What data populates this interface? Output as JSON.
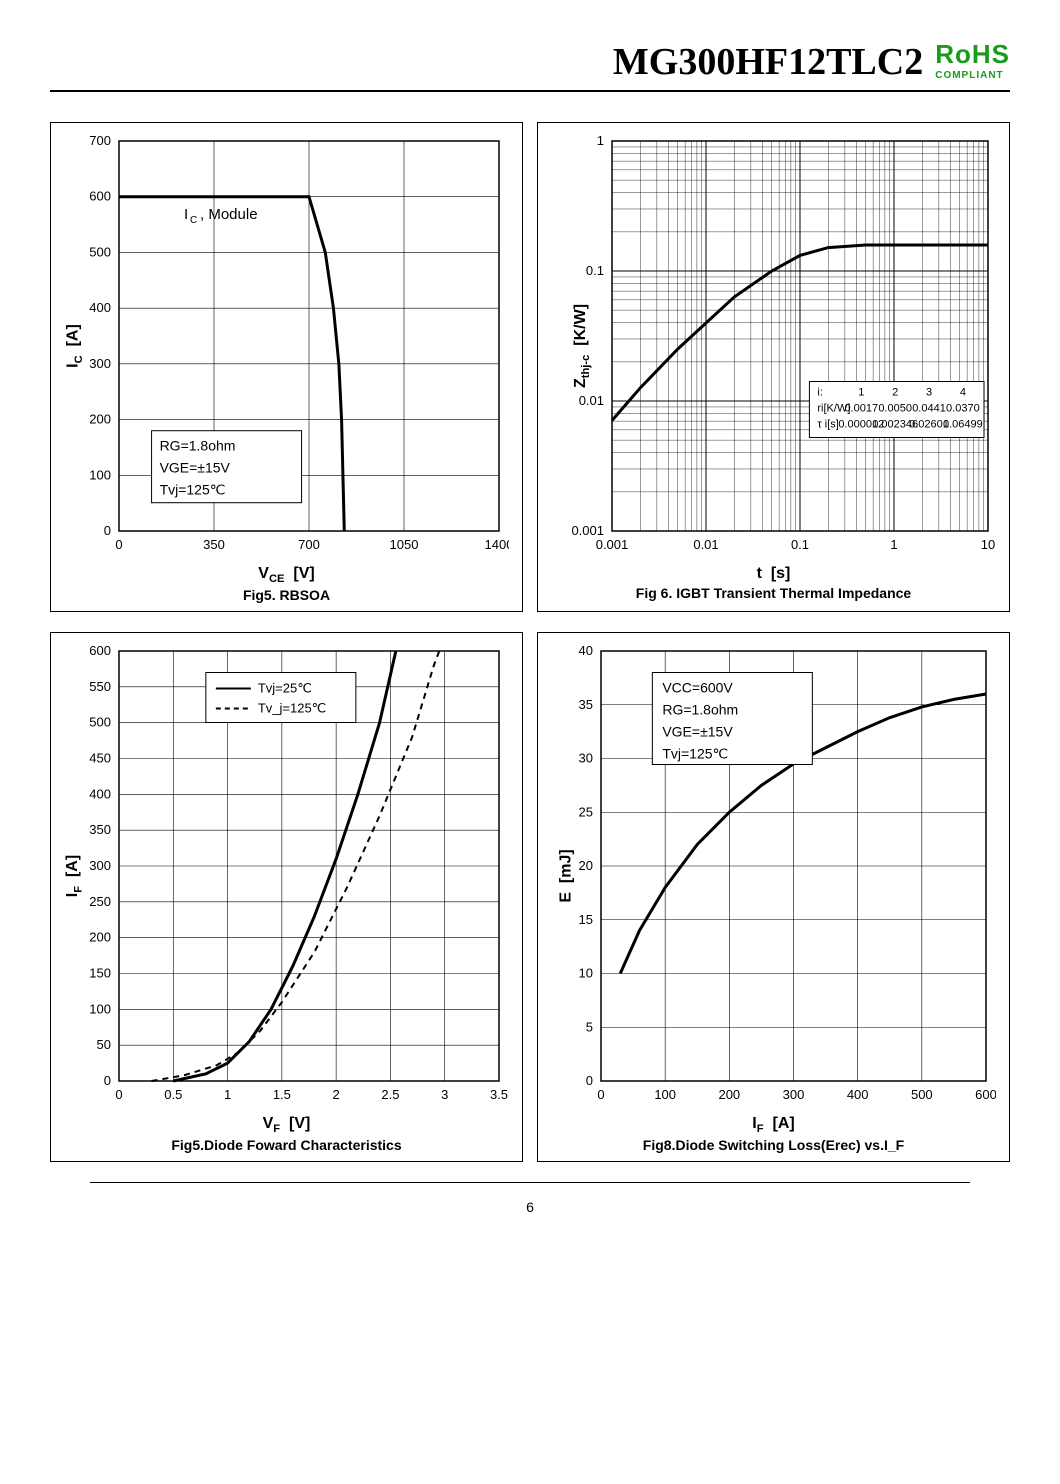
{
  "header": {
    "title": "MG300HF12TLC2",
    "rohs1": "RoHS",
    "rohs2": "COMPLIANT"
  },
  "page_number": "6",
  "fig5a": {
    "type": "line",
    "xlabel": "V_CE  [V]",
    "ylabel": "I_C  [A]",
    "caption": "Fig5. RBSOA",
    "xlim": [
      0,
      1400
    ],
    "ylim": [
      0,
      700
    ],
    "xtick_step": 350,
    "ytick_step": 100,
    "annotation": "I_C, Module",
    "cond_box": [
      "R_G=1.8ohm",
      "V_GE=±15V",
      "Tv_j=125℃"
    ],
    "series": {
      "color": "#000",
      "width": 3,
      "pts": [
        [
          0,
          600
        ],
        [
          700,
          600
        ],
        [
          760,
          500
        ],
        [
          790,
          400
        ],
        [
          810,
          300
        ],
        [
          820,
          200
        ],
        [
          825,
          100
        ],
        [
          830,
          0
        ]
      ]
    },
    "bg": "#ffffff",
    "grid": "#000"
  },
  "fig6": {
    "type": "loglog",
    "xlabel": "t  [s]",
    "ylabel": "Z_thj-c  [K/W]",
    "caption": "Fig 6. IGBT Transient Thermal Impedance",
    "xlim_exp": [
      -3,
      1
    ],
    "ylim_exp": [
      -3,
      0
    ],
    "xticks": [
      "0.001",
      "0.01",
      "0.1",
      "1",
      "10"
    ],
    "yticks": [
      "0.001",
      "0.01",
      "0.1",
      "1"
    ],
    "series": {
      "color": "#000",
      "width": 3,
      "pts": [
        [
          -3,
          -2.15
        ],
        [
          -2.7,
          -1.9
        ],
        [
          -2.3,
          -1.6
        ],
        [
          -2,
          -1.4
        ],
        [
          -1.7,
          -1.2
        ],
        [
          -1.3,
          -1.0
        ],
        [
          -1,
          -0.88
        ],
        [
          -0.7,
          -0.82
        ],
        [
          -0.3,
          -0.8
        ],
        [
          0,
          -0.8
        ],
        [
          1,
          -0.8
        ]
      ]
    },
    "table": {
      "headers": [
        "i:",
        "1",
        "2",
        "3",
        "4"
      ],
      "rows": [
        [
          "ri[K/W]",
          "0.0017",
          "0.0050",
          "0.0441",
          "0.0370"
        ],
        [
          "τ i[s]",
          "0.000012",
          "0.002346",
          "0.02601",
          "0.06499"
        ]
      ]
    },
    "bg": "#ffffff",
    "grid": "#000"
  },
  "fig7": {
    "type": "line",
    "xlabel": "V_F  [V]",
    "ylabel": "I_F  [A]",
    "caption": "Fig5.Diode Foward Characteristics",
    "xlim": [
      0,
      3.5
    ],
    "ylim": [
      0,
      600
    ],
    "xtick_step": 0.5,
    "ytick_step": 50,
    "legend": [
      "Tv_j=25℃",
      "Tv_j=125℃"
    ],
    "series25": {
      "color": "#000",
      "width": 3,
      "dash": "",
      "pts": [
        [
          0.5,
          0
        ],
        [
          0.8,
          10
        ],
        [
          1.0,
          25
        ],
        [
          1.2,
          55
        ],
        [
          1.4,
          100
        ],
        [
          1.6,
          160
        ],
        [
          1.8,
          230
        ],
        [
          2.0,
          310
        ],
        [
          2.2,
          400
        ],
        [
          2.4,
          500
        ],
        [
          2.55,
          600
        ]
      ]
    },
    "series125": {
      "color": "#000",
      "width": 2,
      "dash": "6,5",
      "pts": [
        [
          0.3,
          0
        ],
        [
          0.6,
          8
        ],
        [
          0.9,
          22
        ],
        [
          1.1,
          40
        ],
        [
          1.3,
          70
        ],
        [
          1.5,
          110
        ],
        [
          1.8,
          180
        ],
        [
          2.1,
          270
        ],
        [
          2.4,
          370
        ],
        [
          2.7,
          480
        ],
        [
          2.9,
          580
        ],
        [
          2.95,
          600
        ]
      ]
    },
    "bg": "#ffffff",
    "grid": "#000"
  },
  "fig8": {
    "type": "line",
    "xlabel": "I_F  [A]",
    "ylabel": "E  [mJ]",
    "caption": "Fig8.Diode Switching Loss(Erec) vs.I_F",
    "xlim": [
      0,
      600
    ],
    "ylim": [
      0,
      40
    ],
    "xtick_step": 100,
    "ytick_step": 5,
    "cond_box": [
      "V_CC=600V",
      "R_G=1.8ohm",
      "V_GE=±15V",
      "Tv_j=125℃"
    ],
    "series": {
      "color": "#000",
      "width": 3,
      "pts": [
        [
          30,
          10
        ],
        [
          60,
          14
        ],
        [
          100,
          18
        ],
        [
          150,
          22
        ],
        [
          200,
          25
        ],
        [
          250,
          27.5
        ],
        [
          300,
          29.5
        ],
        [
          350,
          31
        ],
        [
          400,
          32.5
        ],
        [
          450,
          33.8
        ],
        [
          500,
          34.8
        ],
        [
          550,
          35.5
        ],
        [
          600,
          36
        ]
      ]
    },
    "bg": "#ffffff",
    "grid": "#000"
  }
}
